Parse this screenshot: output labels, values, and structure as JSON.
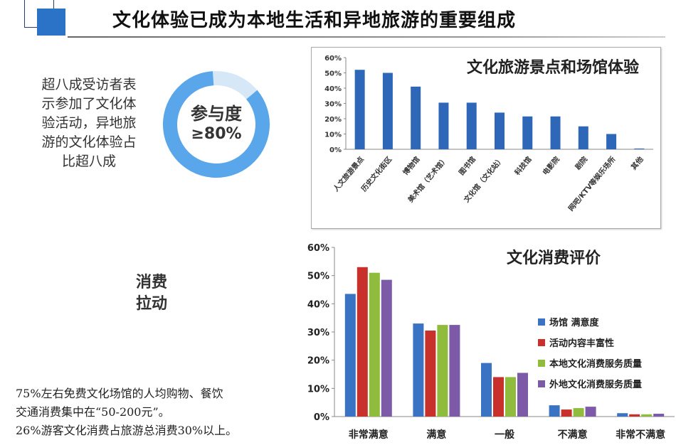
{
  "header": {
    "title": "文化体验已成为本地生活和异地旅游的重要组成"
  },
  "intro": {
    "lines": [
      "超八成受访者表",
      "示参加了文化体",
      "验活动，异地旅",
      "游的文化体验占",
      "比超八成"
    ]
  },
  "donut": {
    "label_line1": "参与度",
    "label_line2": "≥80%",
    "fill_fraction": 0.85,
    "color_main": "#5aa6ea",
    "color_rest": "#d6e8f8"
  },
  "pull": {
    "line1": "消费",
    "line2": "拉动"
  },
  "notes": {
    "line1": "75%左右免费文化场馆的人均购物、餐饮",
    "line2": "交通消费集中在“50-200元”。",
    "line3": "26%游客文化消费占旅游总消费30%以上。"
  },
  "chart_data": [
    {
      "type": "bar",
      "title": "文化旅游景点和场馆体验",
      "categories": [
        "人文旅游景点",
        "历史文化街区",
        "博物馆",
        "美术馆（艺术馆）",
        "图书馆",
        "文化馆（文化站）",
        "科技馆",
        "电影院",
        "剧院",
        "网吧/KTV等娱乐场所",
        "其他"
      ],
      "values": [
        52,
        50,
        41,
        30.5,
        30.5,
        24,
        21.5,
        21.5,
        15,
        10,
        0.5
      ],
      "ylim": [
        0,
        60
      ],
      "yticks": [
        "0%",
        "10%",
        "20%",
        "30%",
        "40%",
        "50%",
        "60%"
      ],
      "bar_color": "#2e67b8",
      "grid": false
    },
    {
      "type": "bar",
      "title": "文化消费评价",
      "categories": [
        "非常满意",
        "满意",
        "一般",
        "不满意",
        "非常不满意"
      ],
      "series": [
        {
          "name": "场馆 满意度",
          "values": [
            43.5,
            33,
            19,
            4,
            1.2
          ],
          "color": "#3a72c4"
        },
        {
          "name": "活动内容丰富性",
          "values": [
            53,
            30.5,
            14,
            2.5,
            0.8
          ],
          "color": "#c8302c"
        },
        {
          "name": "本地文化消费服务质量",
          "values": [
            51,
            32.5,
            14,
            3,
            0.8
          ],
          "color": "#8fbc3c"
        },
        {
          "name": "外地文化消费服务质量",
          "values": [
            48.5,
            32.5,
            15.5,
            3.5,
            1
          ],
          "color": "#7d5aa8"
        }
      ],
      "ylim": [
        0,
        60
      ],
      "yticks": [
        "0%",
        "10%",
        "20%",
        "30%",
        "40%",
        "50%",
        "60%"
      ],
      "legend_position": "right",
      "grid": false
    }
  ]
}
